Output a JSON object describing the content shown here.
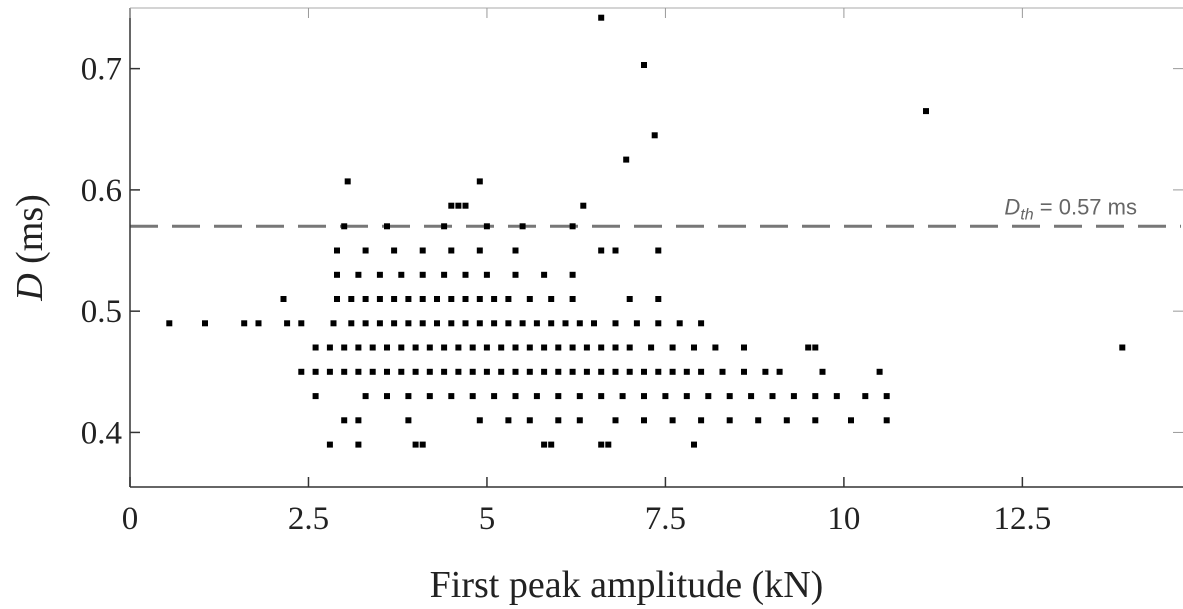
{
  "chart_data": {
    "type": "scatter",
    "title": "",
    "xlabel": "First peak amplitude (kN)",
    "ylabel_var": "D",
    "ylabel_unit": " (ms)",
    "xlim": [
      0,
      14.75
    ],
    "ylim": [
      0.355,
      0.75
    ],
    "xticks": [
      0,
      2.5,
      5,
      7.5,
      10,
      12.5
    ],
    "xtick_labels": [
      "0",
      "2.5",
      "5",
      "7.5",
      "10",
      "12.5"
    ],
    "yticks": [
      0.4,
      0.5,
      0.6,
      0.7
    ],
    "ytick_labels": [
      "0.4",
      "0.5",
      "0.6",
      "0.7"
    ],
    "grid": false,
    "marker_color": "#000000",
    "threshold": {
      "y": 0.57,
      "label_var": "D",
      "label_sub": "th",
      "label_value": " = 0.57 ms",
      "color": "#777777"
    },
    "series": [
      {
        "points": [
          [
            0.55,
            0.49
          ],
          [
            1.05,
            0.49
          ],
          [
            1.6,
            0.49
          ],
          [
            1.8,
            0.49
          ],
          [
            2.15,
            0.51
          ],
          [
            2.2,
            0.49
          ],
          [
            2.4,
            0.49
          ],
          [
            2.85,
            0.49
          ],
          [
            2.9,
            0.51
          ],
          [
            3.1,
            0.49
          ],
          [
            3.3,
            0.49
          ],
          [
            3.5,
            0.49
          ],
          [
            3.7,
            0.49
          ],
          [
            3.9,
            0.49
          ],
          [
            4.1,
            0.49
          ],
          [
            4.3,
            0.49
          ],
          [
            4.5,
            0.49
          ],
          [
            4.7,
            0.49
          ],
          [
            4.9,
            0.49
          ],
          [
            5.1,
            0.49
          ],
          [
            5.3,
            0.49
          ],
          [
            5.5,
            0.49
          ],
          [
            5.7,
            0.49
          ],
          [
            5.9,
            0.49
          ],
          [
            6.1,
            0.49
          ],
          [
            6.3,
            0.49
          ],
          [
            6.5,
            0.49
          ],
          [
            6.8,
            0.49
          ],
          [
            7.1,
            0.49
          ],
          [
            7.4,
            0.49
          ],
          [
            7.7,
            0.49
          ],
          [
            8.0,
            0.49
          ],
          [
            2.6,
            0.47
          ],
          [
            2.8,
            0.47
          ],
          [
            3.0,
            0.47
          ],
          [
            3.2,
            0.47
          ],
          [
            3.4,
            0.47
          ],
          [
            3.6,
            0.47
          ],
          [
            3.8,
            0.47
          ],
          [
            4.0,
            0.47
          ],
          [
            4.2,
            0.47
          ],
          [
            4.4,
            0.47
          ],
          [
            4.6,
            0.47
          ],
          [
            4.8,
            0.47
          ],
          [
            5.0,
            0.47
          ],
          [
            5.2,
            0.47
          ],
          [
            5.4,
            0.47
          ],
          [
            5.6,
            0.47
          ],
          [
            5.8,
            0.47
          ],
          [
            6.0,
            0.47
          ],
          [
            6.2,
            0.47
          ],
          [
            6.4,
            0.47
          ],
          [
            6.6,
            0.47
          ],
          [
            6.8,
            0.47
          ],
          [
            7.0,
            0.47
          ],
          [
            7.3,
            0.47
          ],
          [
            7.6,
            0.47
          ],
          [
            7.9,
            0.47
          ],
          [
            8.2,
            0.47
          ],
          [
            8.6,
            0.47
          ],
          [
            9.5,
            0.47
          ],
          [
            9.6,
            0.47
          ],
          [
            13.9,
            0.47
          ],
          [
            2.4,
            0.45
          ],
          [
            2.6,
            0.45
          ],
          [
            2.8,
            0.45
          ],
          [
            3.0,
            0.45
          ],
          [
            3.2,
            0.45
          ],
          [
            3.4,
            0.45
          ],
          [
            3.6,
            0.45
          ],
          [
            3.8,
            0.45
          ],
          [
            4.0,
            0.45
          ],
          [
            4.2,
            0.45
          ],
          [
            4.4,
            0.45
          ],
          [
            4.6,
            0.45
          ],
          [
            4.8,
            0.45
          ],
          [
            5.0,
            0.45
          ],
          [
            5.2,
            0.45
          ],
          [
            5.4,
            0.45
          ],
          [
            5.6,
            0.45
          ],
          [
            5.8,
            0.45
          ],
          [
            6.0,
            0.45
          ],
          [
            6.2,
            0.45
          ],
          [
            6.4,
            0.45
          ],
          [
            6.6,
            0.45
          ],
          [
            6.8,
            0.45
          ],
          [
            7.0,
            0.45
          ],
          [
            7.2,
            0.45
          ],
          [
            7.4,
            0.45
          ],
          [
            7.6,
            0.45
          ],
          [
            7.8,
            0.45
          ],
          [
            8.0,
            0.45
          ],
          [
            8.3,
            0.45
          ],
          [
            8.6,
            0.45
          ],
          [
            8.9,
            0.45
          ],
          [
            9.1,
            0.45
          ],
          [
            9.7,
            0.45
          ],
          [
            10.5,
            0.45
          ],
          [
            2.6,
            0.43
          ],
          [
            3.3,
            0.43
          ],
          [
            3.6,
            0.43
          ],
          [
            3.9,
            0.43
          ],
          [
            4.2,
            0.43
          ],
          [
            4.5,
            0.43
          ],
          [
            4.8,
            0.43
          ],
          [
            5.1,
            0.43
          ],
          [
            5.4,
            0.43
          ],
          [
            5.7,
            0.43
          ],
          [
            6.0,
            0.43
          ],
          [
            6.3,
            0.43
          ],
          [
            6.6,
            0.43
          ],
          [
            6.9,
            0.43
          ],
          [
            7.2,
            0.43
          ],
          [
            7.5,
            0.43
          ],
          [
            7.8,
            0.43
          ],
          [
            8.1,
            0.43
          ],
          [
            8.4,
            0.43
          ],
          [
            8.7,
            0.43
          ],
          [
            9.0,
            0.43
          ],
          [
            9.3,
            0.43
          ],
          [
            9.6,
            0.43
          ],
          [
            9.9,
            0.43
          ],
          [
            10.3,
            0.43
          ],
          [
            10.6,
            0.43
          ],
          [
            3.0,
            0.41
          ],
          [
            3.2,
            0.41
          ],
          [
            3.9,
            0.41
          ],
          [
            4.9,
            0.41
          ],
          [
            5.3,
            0.41
          ],
          [
            5.6,
            0.41
          ],
          [
            6.0,
            0.41
          ],
          [
            6.3,
            0.41
          ],
          [
            6.8,
            0.41
          ],
          [
            7.2,
            0.41
          ],
          [
            7.6,
            0.41
          ],
          [
            8.0,
            0.41
          ],
          [
            8.4,
            0.41
          ],
          [
            8.8,
            0.41
          ],
          [
            9.2,
            0.41
          ],
          [
            9.6,
            0.41
          ],
          [
            10.1,
            0.41
          ],
          [
            10.6,
            0.41
          ],
          [
            2.8,
            0.39
          ],
          [
            3.2,
            0.39
          ],
          [
            4.0,
            0.39
          ],
          [
            4.1,
            0.39
          ],
          [
            5.8,
            0.39
          ],
          [
            5.9,
            0.39
          ],
          [
            6.6,
            0.39
          ],
          [
            6.7,
            0.39
          ],
          [
            7.9,
            0.39
          ],
          [
            2.9,
            0.51
          ],
          [
            3.1,
            0.51
          ],
          [
            3.3,
            0.51
          ],
          [
            3.5,
            0.51
          ],
          [
            3.7,
            0.51
          ],
          [
            3.9,
            0.51
          ],
          [
            4.1,
            0.51
          ],
          [
            4.3,
            0.51
          ],
          [
            4.5,
            0.51
          ],
          [
            4.7,
            0.51
          ],
          [
            4.9,
            0.51
          ],
          [
            5.1,
            0.51
          ],
          [
            5.3,
            0.51
          ],
          [
            5.6,
            0.51
          ],
          [
            5.9,
            0.51
          ],
          [
            6.2,
            0.51
          ],
          [
            7.0,
            0.51
          ],
          [
            7.4,
            0.51
          ],
          [
            2.9,
            0.53
          ],
          [
            3.2,
            0.53
          ],
          [
            3.5,
            0.53
          ],
          [
            3.8,
            0.53
          ],
          [
            4.1,
            0.53
          ],
          [
            4.4,
            0.53
          ],
          [
            4.7,
            0.53
          ],
          [
            5.0,
            0.53
          ],
          [
            5.4,
            0.53
          ],
          [
            5.8,
            0.53
          ],
          [
            6.2,
            0.53
          ],
          [
            2.9,
            0.55
          ],
          [
            3.3,
            0.55
          ],
          [
            3.7,
            0.55
          ],
          [
            4.1,
            0.55
          ],
          [
            4.5,
            0.55
          ],
          [
            4.9,
            0.55
          ],
          [
            5.4,
            0.55
          ],
          [
            6.6,
            0.55
          ],
          [
            6.8,
            0.55
          ],
          [
            7.4,
            0.55
          ],
          [
            3.0,
            0.57
          ],
          [
            3.6,
            0.57
          ],
          [
            4.4,
            0.57
          ],
          [
            5.0,
            0.57
          ],
          [
            5.5,
            0.57
          ],
          [
            6.2,
            0.57
          ],
          [
            4.5,
            0.587
          ],
          [
            4.6,
            0.587
          ],
          [
            4.7,
            0.587
          ],
          [
            6.35,
            0.587
          ],
          [
            3.05,
            0.607
          ],
          [
            4.9,
            0.607
          ],
          [
            6.95,
            0.625
          ],
          [
            7.35,
            0.645
          ],
          [
            7.2,
            0.703
          ],
          [
            6.6,
            0.742
          ],
          [
            11.15,
            0.665
          ]
        ]
      }
    ]
  }
}
